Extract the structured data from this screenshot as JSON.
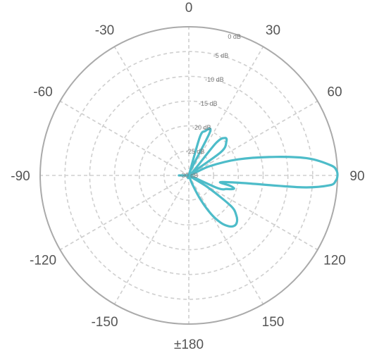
{
  "chart_data": {
    "type": "polar-line",
    "title": "",
    "radial_axis": {
      "unit": "dB",
      "range": [
        -30,
        0
      ],
      "tick_values": [
        0,
        -5,
        -10,
        -15,
        -20,
        -25,
        -30
      ],
      "tick_labels": [
        "0 dB",
        "-5 dB",
        "-10 dB",
        "-15 dB",
        "-20 dB",
        "-25 dB",
        "-30 dB"
      ]
    },
    "angular_axis": {
      "unit": "deg",
      "zero_direction": "top",
      "direction": "clockwise",
      "tick_values": [
        0,
        30,
        60,
        90,
        120,
        150,
        180,
        -150,
        -120,
        -90,
        -60,
        -30
      ],
      "tick_labels": [
        "0",
        "30",
        "60",
        "90",
        "120",
        "150",
        "±180",
        "-150",
        "-120",
        "-90",
        "-60",
        "-30"
      ]
    },
    "grid": true,
    "colors": {
      "series": "#4dbcc9",
      "grid": "#cfcfcf",
      "outer_ring": "#aaaaaa",
      "text": "#555555"
    },
    "series": [
      {
        "theta": [
          -180,
          -150,
          -120,
          -90,
          -60,
          -30,
          -10,
          0,
          10,
          16,
          20,
          26,
          32,
          40,
          44,
          48,
          54,
          60,
          66,
          72,
          78,
          82,
          86,
          88,
          90,
          92,
          94,
          96,
          98,
          102,
          104,
          106,
          108,
          110,
          112,
          114,
          118,
          122,
          126,
          130,
          134,
          138,
          142,
          146,
          150,
          154,
          158,
          162,
          166,
          170,
          174,
          180
        ],
        "r_db": [
          -30,
          -30,
          -30,
          -28,
          -30,
          -30,
          -30,
          -30,
          -30,
          -22,
          -20.5,
          -20.3,
          -30,
          -21.5,
          -19.5,
          -19.8,
          -22,
          -30,
          -25.5,
          -19.5,
          -12,
          -5.5,
          -1.2,
          -0.2,
          0,
          -0.3,
          -1.5,
          -7,
          -19,
          -23.5,
          -21.5,
          -20.5,
          -21,
          -22,
          -22.5,
          -24,
          -30,
          -25.5,
          -19.5,
          -17.5,
          -16.5,
          -16.3,
          -17,
          -18.5,
          -21,
          -24.5,
          -28,
          -30,
          -30,
          -30,
          -30,
          -30
        ]
      }
    ]
  }
}
